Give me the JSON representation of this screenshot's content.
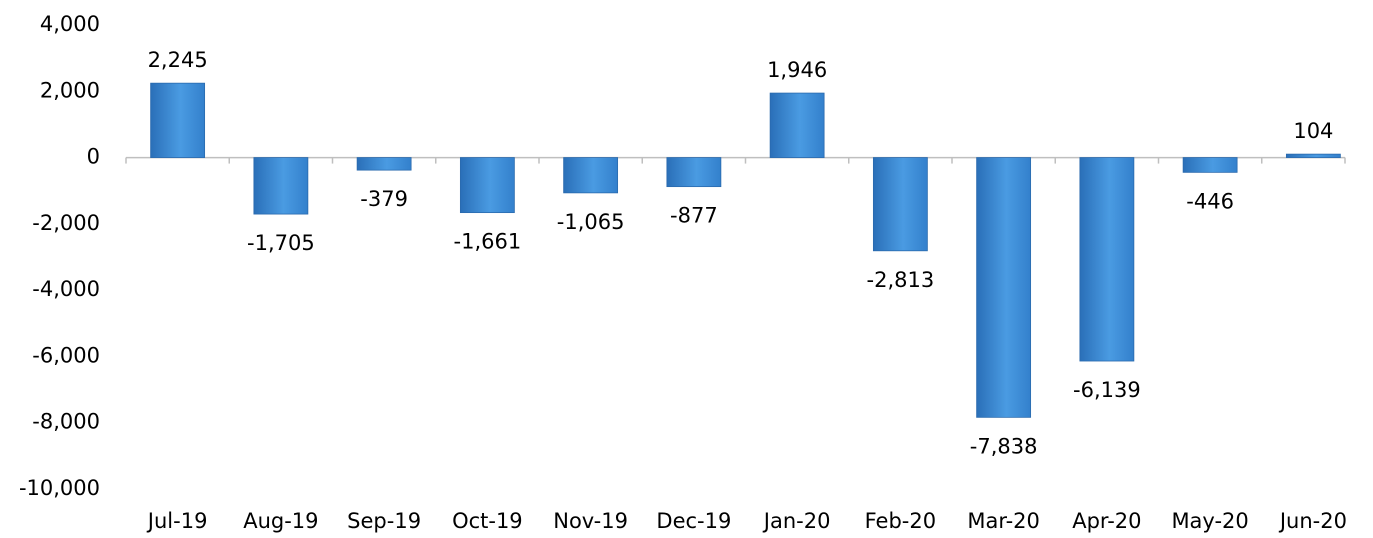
{
  "chart_data": {
    "type": "bar",
    "categories": [
      "Jul-19",
      "Aug-19",
      "Sep-19",
      "Oct-19",
      "Nov-19",
      "Dec-19",
      "Jan-20",
      "Feb-20",
      "Mar-20",
      "Apr-20",
      "May-20",
      "Jun-20"
    ],
    "values": [
      2245,
      -1705,
      -379,
      -1661,
      -1065,
      -877,
      1946,
      -2813,
      -7838,
      -6139,
      -446,
      104
    ],
    "value_labels": [
      "2,245",
      "-1,705",
      "-379",
      "-1,661",
      "-1,065",
      "-877",
      "1,946",
      "-2,813",
      "-7,838",
      "-6,139",
      "-446",
      "104"
    ],
    "color": "#4a9be2",
    "ylim": [
      -10000,
      4000
    ],
    "yticks": [
      {
        "value": -10000,
        "label": "-10,000"
      },
      {
        "value": -8000,
        "label": "-8,000"
      },
      {
        "value": -6000,
        "label": "-6,000"
      },
      {
        "value": -4000,
        "label": "-4,000"
      },
      {
        "value": -2000,
        "label": "-2,000"
      },
      0,
      {
        "value": 2000,
        "label": "2,000"
      },
      {
        "value": 4000,
        "label": "4,000"
      }
    ],
    "grid": false
  }
}
